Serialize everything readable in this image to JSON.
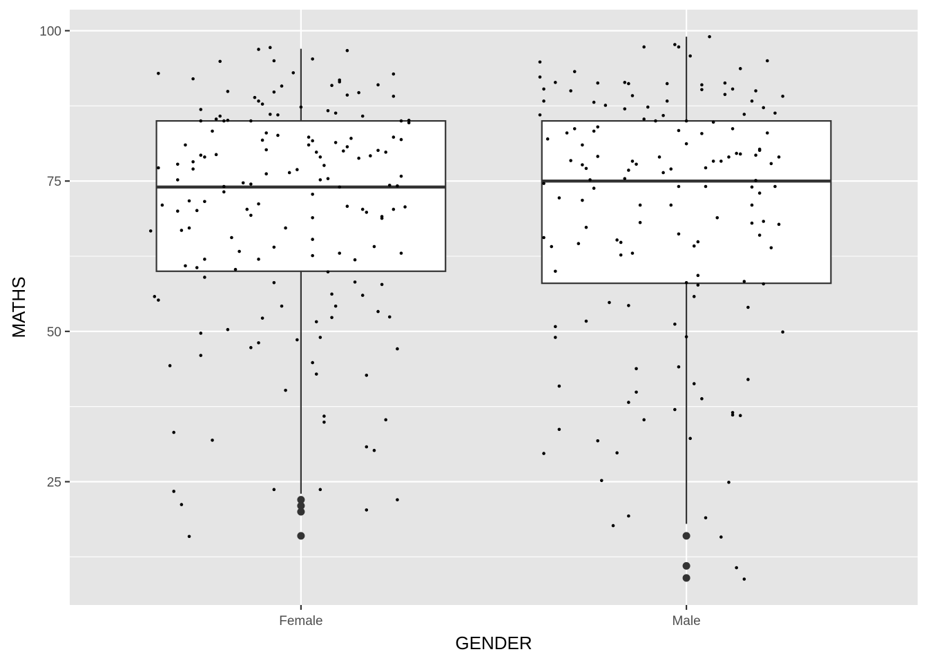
{
  "chart_data": {
    "type": "boxplot",
    "xlabel": "GENDER",
    "ylabel": "MATHS",
    "ylim": [
      4.5,
      103.5
    ],
    "yticks": [
      25,
      50,
      75,
      100
    ],
    "categories": [
      "Female",
      "Male"
    ],
    "grid": true,
    "panel_background": "#e5e5e5",
    "box_fill": "#ffffff",
    "box_stroke": "#333333",
    "boxes": [
      {
        "category": "Female",
        "whisker_low": 23,
        "q1": 60,
        "median": 74,
        "q3": 85,
        "whisker_high": 97,
        "outliers": [
          22,
          21,
          20,
          16
        ]
      },
      {
        "category": "Male",
        "whisker_low": 18,
        "q1": 58,
        "median": 75,
        "q3": 85,
        "whisker_high": 99,
        "outliers": [
          16,
          11,
          9
        ]
      }
    ],
    "jitter_points": {
      "Female": [
        [
          -0.39,
          66.7
        ],
        [
          -0.38,
          55.8
        ],
        [
          -0.37,
          92.9
        ],
        [
          -0.37,
          77.2
        ],
        [
          -0.37,
          55.2
        ],
        [
          -0.36,
          71.0
        ],
        [
          -0.34,
          44.3
        ],
        [
          -0.33,
          33.2
        ],
        [
          -0.33,
          23.4
        ],
        [
          -0.32,
          77.8
        ],
        [
          -0.32,
          75.2
        ],
        [
          -0.32,
          70.0
        ],
        [
          -0.31,
          21.2
        ],
        [
          -0.31,
          66.8
        ],
        [
          -0.3,
          60.9
        ],
        [
          -0.3,
          81.0
        ],
        [
          -0.29,
          71.7
        ],
        [
          -0.29,
          67.2
        ],
        [
          -0.29,
          15.9
        ],
        [
          -0.28,
          92.0
        ],
        [
          -0.28,
          78.2
        ],
        [
          -0.28,
          77.0
        ],
        [
          -0.27,
          70.1
        ],
        [
          -0.27,
          60.6
        ],
        [
          -0.26,
          86.9
        ],
        [
          -0.26,
          85.0
        ],
        [
          -0.26,
          79.3
        ],
        [
          -0.26,
          49.7
        ],
        [
          -0.26,
          46.0
        ],
        [
          -0.25,
          79.0
        ],
        [
          -0.25,
          62.0
        ],
        [
          -0.25,
          59.0
        ],
        [
          -0.25,
          71.6
        ],
        [
          -0.23,
          83.3
        ],
        [
          -0.23,
          31.9
        ],
        [
          -0.22,
          85.3
        ],
        [
          -0.22,
          79.4
        ],
        [
          -0.21,
          94.9
        ],
        [
          -0.21,
          85.8
        ],
        [
          -0.2,
          85.0
        ],
        [
          -0.2,
          74.1
        ],
        [
          -0.2,
          73.2
        ],
        [
          -0.19,
          50.3
        ],
        [
          -0.19,
          89.9
        ],
        [
          -0.19,
          85.1
        ],
        [
          -0.18,
          65.6
        ],
        [
          -0.17,
          60.3
        ],
        [
          -0.16,
          63.3
        ],
        [
          -0.15,
          74.7
        ],
        [
          -0.14,
          70.3
        ],
        [
          -0.13,
          85.0
        ],
        [
          -0.13,
          74.5
        ],
        [
          -0.13,
          69.3
        ],
        [
          -0.13,
          47.3
        ],
        [
          -0.12,
          88.9
        ],
        [
          -0.11,
          96.9
        ],
        [
          -0.11,
          88.3
        ],
        [
          -0.11,
          71.2
        ],
        [
          -0.11,
          62.0
        ],
        [
          -0.11,
          48.1
        ],
        [
          -0.1,
          87.8
        ],
        [
          -0.1,
          81.8
        ],
        [
          -0.1,
          52.2
        ],
        [
          -0.09,
          83.0
        ],
        [
          -0.09,
          80.2
        ],
        [
          -0.09,
          76.2
        ],
        [
          -0.08,
          97.2
        ],
        [
          -0.08,
          86.1
        ],
        [
          -0.07,
          95.0
        ],
        [
          -0.07,
          89.8
        ],
        [
          -0.07,
          64.0
        ],
        [
          -0.07,
          58.1
        ],
        [
          -0.07,
          23.7
        ],
        [
          -0.06,
          82.6
        ],
        [
          -0.06,
          86.0
        ],
        [
          -0.05,
          90.8
        ],
        [
          -0.05,
          54.2
        ],
        [
          -0.04,
          67.2
        ],
        [
          -0.04,
          40.2
        ],
        [
          -0.03,
          76.4
        ],
        [
          -0.02,
          93.0
        ],
        [
          -0.01,
          48.6
        ],
        [
          -0.01,
          76.9
        ],
        [
          0.0,
          87.3
        ],
        [
          0.02,
          82.3
        ],
        [
          0.02,
          81.0
        ],
        [
          0.03,
          81.7
        ],
        [
          0.03,
          72.8
        ],
        [
          0.03,
          68.9
        ],
        [
          0.03,
          65.3
        ],
        [
          0.03,
          62.6
        ],
        [
          0.03,
          44.8
        ],
        [
          0.03,
          95.3
        ],
        [
          0.04,
          79.8
        ],
        [
          0.04,
          51.6
        ],
        [
          0.04,
          42.9
        ],
        [
          0.05,
          79.0
        ],
        [
          0.05,
          75.2
        ],
        [
          0.05,
          49.0
        ],
        [
          0.05,
          23.7
        ],
        [
          0.06,
          77.6
        ],
        [
          0.06,
          35.9
        ],
        [
          0.06,
          34.9
        ],
        [
          0.07,
          75.4
        ],
        [
          0.07,
          59.9
        ],
        [
          0.07,
          86.7
        ],
        [
          0.08,
          56.2
        ],
        [
          0.08,
          52.3
        ],
        [
          0.08,
          90.9
        ],
        [
          0.09,
          86.3
        ],
        [
          0.09,
          81.4
        ],
        [
          0.09,
          54.2
        ],
        [
          0.1,
          91.5
        ],
        [
          0.1,
          91.8
        ],
        [
          0.1,
          74.0
        ],
        [
          0.1,
          63.0
        ],
        [
          0.11,
          80.0
        ],
        [
          0.12,
          89.3
        ],
        [
          0.12,
          80.7
        ],
        [
          0.12,
          70.8
        ],
        [
          0.12,
          96.7
        ],
        [
          0.13,
          82.1
        ],
        [
          0.14,
          58.2
        ],
        [
          0.14,
          61.9
        ],
        [
          0.15,
          89.7
        ],
        [
          0.15,
          78.8
        ],
        [
          0.16,
          85.8
        ],
        [
          0.16,
          70.3
        ],
        [
          0.16,
          56.0
        ],
        [
          0.17,
          69.8
        ],
        [
          0.17,
          42.7
        ],
        [
          0.17,
          30.8
        ],
        [
          0.17,
          20.3
        ],
        [
          0.18,
          79.2
        ],
        [
          0.19,
          64.1
        ],
        [
          0.19,
          30.2
        ],
        [
          0.2,
          91.0
        ],
        [
          0.2,
          80.1
        ],
        [
          0.2,
          53.3
        ],
        [
          0.21,
          69.1
        ],
        [
          0.21,
          68.8
        ],
        [
          0.21,
          57.8
        ],
        [
          0.22,
          79.8
        ],
        [
          0.22,
          35.3
        ],
        [
          0.23,
          74.3
        ],
        [
          0.23,
          52.4
        ],
        [
          0.24,
          92.8
        ],
        [
          0.24,
          89.1
        ],
        [
          0.24,
          82.3
        ],
        [
          0.24,
          70.3
        ],
        [
          0.25,
          74.2
        ],
        [
          0.25,
          47.1
        ],
        [
          0.25,
          22.0
        ],
        [
          0.26,
          85.0
        ],
        [
          0.26,
          81.9
        ],
        [
          0.26,
          75.8
        ],
        [
          0.26,
          63.0
        ],
        [
          0.27,
          70.7
        ],
        [
          0.28,
          85.1
        ],
        [
          0.28,
          84.7
        ]
      ],
      "Male": [
        [
          -0.38,
          94.8
        ],
        [
          -0.38,
          92.3
        ],
        [
          -0.38,
          86.0
        ],
        [
          -0.37,
          90.3
        ],
        [
          -0.37,
          88.3
        ],
        [
          -0.37,
          74.6
        ],
        [
          -0.37,
          65.6
        ],
        [
          -0.37,
          29.7
        ],
        [
          -0.36,
          82.0
        ],
        [
          -0.35,
          64.1
        ],
        [
          -0.34,
          91.4
        ],
        [
          -0.34,
          50.8
        ],
        [
          -0.34,
          60.0
        ],
        [
          -0.34,
          49.0
        ],
        [
          -0.33,
          72.2
        ],
        [
          -0.33,
          40.9
        ],
        [
          -0.33,
          33.7
        ],
        [
          -0.31,
          83.0
        ],
        [
          -0.3,
          78.4
        ],
        [
          -0.3,
          90.0
        ],
        [
          -0.29,
          93.2
        ],
        [
          -0.29,
          83.7
        ],
        [
          -0.28,
          64.6
        ],
        [
          -0.27,
          81.0
        ],
        [
          -0.27,
          77.7
        ],
        [
          -0.27,
          71.8
        ],
        [
          -0.26,
          77.1
        ],
        [
          -0.26,
          67.3
        ],
        [
          -0.26,
          51.7
        ],
        [
          -0.25,
          75.2
        ],
        [
          -0.24,
          88.1
        ],
        [
          -0.24,
          83.3
        ],
        [
          -0.24,
          73.8
        ],
        [
          -0.23,
          91.3
        ],
        [
          -0.23,
          84.0
        ],
        [
          -0.23,
          79.1
        ],
        [
          -0.23,
          31.8
        ],
        [
          -0.22,
          25.2
        ],
        [
          -0.21,
          87.6
        ],
        [
          -0.2,
          54.8
        ],
        [
          -0.19,
          17.7
        ],
        [
          -0.18,
          29.8
        ],
        [
          -0.18,
          65.2
        ],
        [
          -0.17,
          62.7
        ],
        [
          -0.17,
          64.8
        ],
        [
          -0.16,
          91.4
        ],
        [
          -0.16,
          87.0
        ],
        [
          -0.16,
          75.4
        ],
        [
          -0.15,
          76.8
        ],
        [
          -0.15,
          54.3
        ],
        [
          -0.15,
          38.2
        ],
        [
          -0.15,
          19.3
        ],
        [
          -0.15,
          91.2
        ],
        [
          -0.14,
          89.2
        ],
        [
          -0.14,
          78.3
        ],
        [
          -0.14,
          63.0
        ],
        [
          -0.13,
          77.8
        ],
        [
          -0.13,
          43.8
        ],
        [
          -0.13,
          39.9
        ],
        [
          -0.12,
          71.0
        ],
        [
          -0.12,
          68.1
        ],
        [
          -0.11,
          85.3
        ],
        [
          -0.11,
          97.3
        ],
        [
          -0.11,
          35.3
        ],
        [
          -0.1,
          87.3
        ],
        [
          -0.08,
          85.0
        ],
        [
          -0.07,
          79.0
        ],
        [
          -0.06,
          85.9
        ],
        [
          -0.06,
          76.4
        ],
        [
          -0.05,
          88.3
        ],
        [
          -0.05,
          91.2
        ],
        [
          -0.04,
          77.0
        ],
        [
          -0.04,
          71.0
        ],
        [
          -0.03,
          97.7
        ],
        [
          -0.03,
          51.2
        ],
        [
          -0.03,
          37.0
        ],
        [
          -0.02,
          97.3
        ],
        [
          -0.02,
          83.4
        ],
        [
          -0.02,
          74.1
        ],
        [
          -0.02,
          66.2
        ],
        [
          -0.02,
          44.1
        ],
        [
          0.0,
          85.0
        ],
        [
          0.0,
          81.2
        ],
        [
          0.0,
          58.1
        ],
        [
          0.0,
          49.1
        ],
        [
          0.01,
          32.2
        ],
        [
          0.01,
          95.8
        ],
        [
          0.02,
          41.3
        ],
        [
          0.02,
          64.2
        ],
        [
          0.02,
          55.8
        ],
        [
          0.03,
          57.7
        ],
        [
          0.03,
          59.3
        ],
        [
          0.03,
          64.9
        ],
        [
          0.04,
          91.0
        ],
        [
          0.04,
          90.2
        ],
        [
          0.04,
          82.9
        ],
        [
          0.04,
          38.8
        ],
        [
          0.05,
          74.1
        ],
        [
          0.05,
          77.2
        ],
        [
          0.05,
          19.0
        ],
        [
          0.06,
          99.0
        ],
        [
          0.07,
          84.8
        ],
        [
          0.07,
          78.3
        ],
        [
          0.08,
          68.9
        ],
        [
          0.09,
          78.3
        ],
        [
          0.09,
          15.8
        ],
        [
          0.1,
          91.3
        ],
        [
          0.1,
          89.4
        ],
        [
          0.11,
          79.0
        ],
        [
          0.11,
          24.9
        ],
        [
          0.12,
          90.3
        ],
        [
          0.12,
          83.7
        ],
        [
          0.12,
          36.5
        ],
        [
          0.12,
          36.1
        ],
        [
          0.13,
          79.6
        ],
        [
          0.13,
          10.7
        ],
        [
          0.14,
          93.7
        ],
        [
          0.14,
          79.5
        ],
        [
          0.14,
          36.0
        ],
        [
          0.15,
          86.1
        ],
        [
          0.15,
          58.3
        ],
        [
          0.15,
          8.8
        ],
        [
          0.16,
          54.0
        ],
        [
          0.16,
          42.0
        ],
        [
          0.17,
          88.3
        ],
        [
          0.17,
          74.0
        ],
        [
          0.17,
          71.0
        ],
        [
          0.17,
          68.0
        ],
        [
          0.18,
          90.0
        ],
        [
          0.18,
          75.1
        ],
        [
          0.18,
          79.3
        ],
        [
          0.19,
          80.1
        ],
        [
          0.19,
          80.3
        ],
        [
          0.19,
          73.0
        ],
        [
          0.19,
          66.0
        ],
        [
          0.2,
          68.3
        ],
        [
          0.2,
          57.9
        ],
        [
          0.2,
          87.2
        ],
        [
          0.21,
          95.0
        ],
        [
          0.21,
          83.0
        ],
        [
          0.22,
          77.9
        ],
        [
          0.22,
          63.9
        ],
        [
          0.23,
          86.3
        ],
        [
          0.23,
          74.1
        ],
        [
          0.24,
          79.0
        ],
        [
          0.24,
          67.8
        ],
        [
          0.25,
          89.1
        ],
        [
          0.25,
          49.9
        ]
      ]
    }
  }
}
